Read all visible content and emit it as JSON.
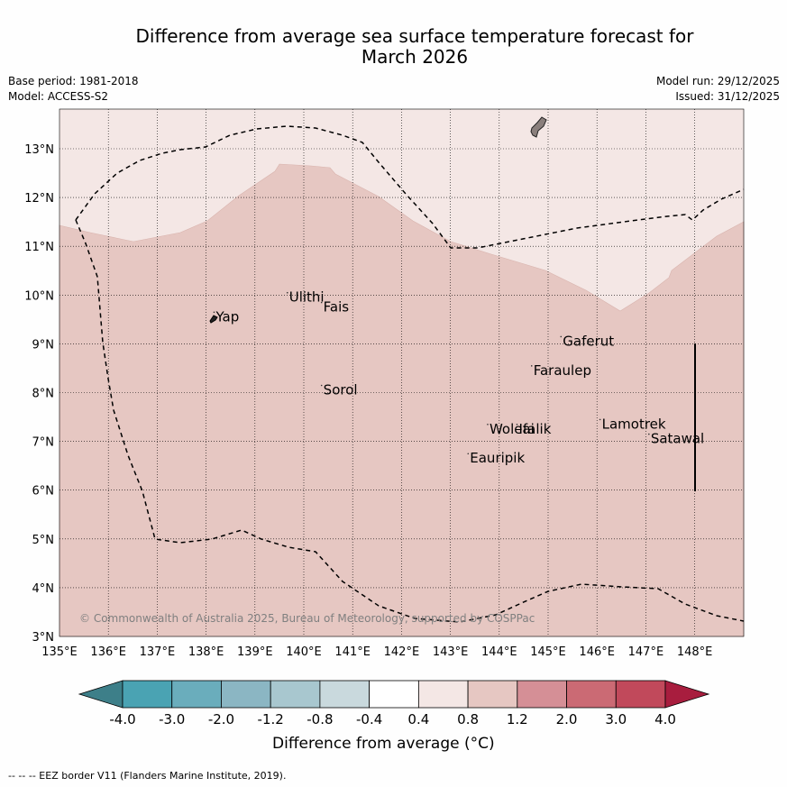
{
  "title": {
    "line1": "Difference from average sea surface temperature forecast for",
    "line2": "March 2026"
  },
  "meta": {
    "base_period": "Base period: 1981-2018",
    "model": "Model: ACCESS-S2",
    "model_run": "Model run: 29/12/2025",
    "issued": "Issued: 31/12/2025"
  },
  "map": {
    "lat_labels": [
      "3°N",
      "4°N",
      "5°N",
      "6°N",
      "7°N",
      "8°N",
      "9°N",
      "10°N",
      "11°N",
      "12°N",
      "13°N"
    ],
    "lon_labels": [
      "135°E",
      "136°E",
      "137°E",
      "138°E",
      "139°E",
      "140°E",
      "141°E",
      "142°E",
      "143°E",
      "144°E",
      "145°E",
      "146°E",
      "147°E",
      "148°E"
    ],
    "places": [
      {
        "name": "Ulithi",
        "lon": 139.7,
        "lat": 9.9
      },
      {
        "name": "Fais",
        "lon": 140.4,
        "lat": 9.7
      },
      {
        "name": "Yap",
        "lon": 138.2,
        "lat": 9.5
      },
      {
        "name": "Gaferut",
        "lon": 145.3,
        "lat": 9.0
      },
      {
        "name": "Faraulep",
        "lon": 144.7,
        "lat": 8.4
      },
      {
        "name": "Sorol",
        "lon": 140.4,
        "lat": 8.0
      },
      {
        "name": "Lamotrek",
        "lon": 146.1,
        "lat": 7.3
      },
      {
        "name": "Woleai",
        "lon": 143.8,
        "lat": 7.2
      },
      {
        "name": "Ifalik",
        "lon": 144.4,
        "lat": 7.2
      },
      {
        "name": "Satawal",
        "lon": 147.1,
        "lat": 7.0
      },
      {
        "name": "Eauripik",
        "lon": 143.4,
        "lat": 6.6
      }
    ],
    "copyright": "© Commonwealth of Australia 2025, Bureau of Meteorology, supported by COSPPac",
    "colors": {
      "light_band": "#f4e7e5",
      "main_band": "#e6c7c2"
    }
  },
  "colorbar": {
    "ticks": [
      "-4.0",
      "-3.0",
      "-2.0",
      "-1.2",
      "-0.8",
      "-0.4",
      "0.4",
      "0.8",
      "1.2",
      "2.0",
      "3.0",
      "4.0"
    ],
    "colors": [
      "#3d7f89",
      "#4aa3b3",
      "#6aadbc",
      "#8bb6c3",
      "#a8c7cf",
      "#c9d9dd",
      "#ffffff",
      "#f4e7e5",
      "#e6c7c2",
      "#d58f96",
      "#cb6a74",
      "#c1495b",
      "#a81d3e"
    ],
    "label": "Difference from average (°C)"
  },
  "footnote": "--  --  -- EEZ border V11 (Flanders Marine Institute, 2019)."
}
